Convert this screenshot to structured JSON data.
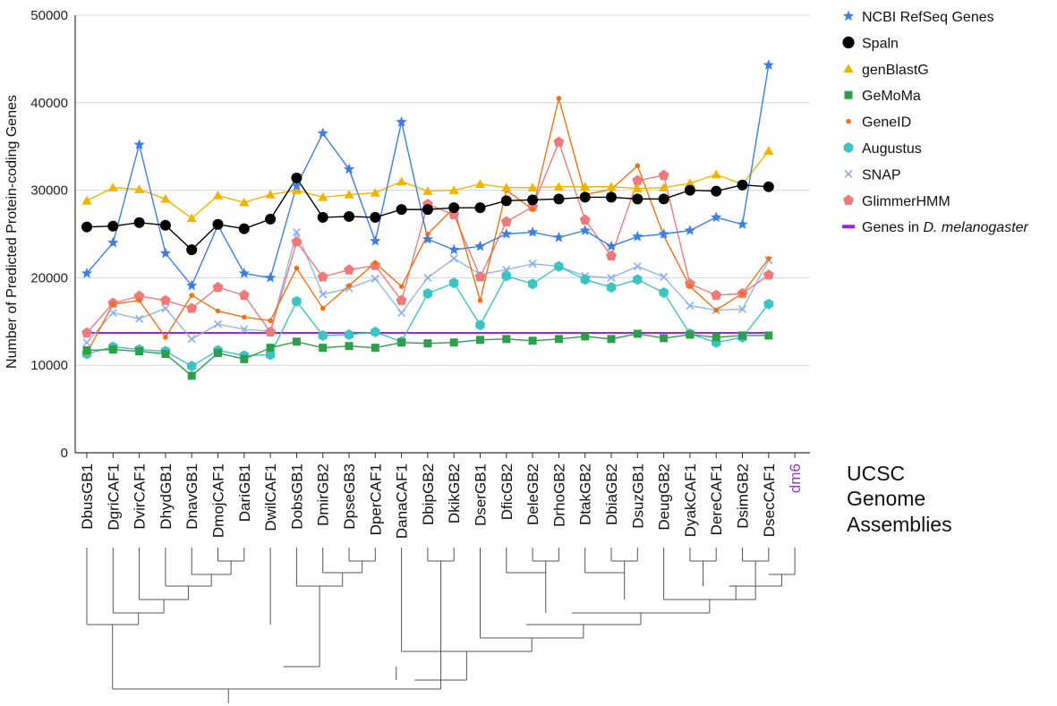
{
  "chart_data": {
    "type": "line",
    "ylabel": "Number of Predicted Protein-coding Genes",
    "ylim": [
      0,
      50000
    ],
    "yticks": [
      0,
      10000,
      20000,
      30000,
      40000,
      50000
    ],
    "grid": true,
    "legend_position": "right",
    "categories": [
      "DbusGB1",
      "DgriCAF1",
      "DvirCAF1",
      "DhydGB1",
      "DnavGB1",
      "DmojCAF1",
      "DariGB1",
      "DwilCAF1",
      "DobsGB1",
      "DmirGB2",
      "DpseGB3",
      "DperCAF1",
      "DanaCAF1",
      "DbipGB2",
      "DkikGB2",
      "DserGB1",
      "DficGB2",
      "DeleGB2",
      "DrhoGB2",
      "DtakGB2",
      "DbiaGB2",
      "DsuzGB1",
      "DeugGB2",
      "DyakCAF1",
      "DereCAF1",
      "DsimGB2",
      "DsecCAF1",
      "dm6"
    ],
    "highlight_category": {
      "label": "dm6",
      "color": "#9b30e0"
    },
    "series": [
      {
        "name": "NCBI RefSeq Genes",
        "color": "#3d7fe0",
        "marker": "star",
        "values": [
          20500,
          24000,
          35200,
          22800,
          19100,
          26000,
          20500,
          20000,
          30500,
          36500,
          32400,
          24200,
          37800,
          24400,
          23200,
          23600,
          25000,
          25200,
          24600,
          25400,
          23600,
          24700,
          25000,
          25400,
          26900,
          26100,
          44300,
          null
        ]
      },
      {
        "name": "Spaln",
        "color": "#000000",
        "marker": "circle",
        "values": [
          25800,
          25900,
          26300,
          26000,
          23200,
          26100,
          25600,
          26700,
          31400,
          26900,
          27000,
          26900,
          27800,
          27800,
          28000,
          28000,
          28800,
          28900,
          29000,
          29200,
          29200,
          29000,
          29000,
          30000,
          29900,
          30600,
          30400,
          null
        ]
      },
      {
        "name": "genBlastG",
        "color": "#f2b400",
        "marker": "triangle",
        "values": [
          28800,
          30300,
          30100,
          29000,
          26800,
          29400,
          28600,
          29500,
          30000,
          29200,
          29500,
          29700,
          31000,
          29900,
          30000,
          30700,
          30300,
          30300,
          30400,
          30400,
          30400,
          30200,
          30300,
          30800,
          31800,
          30700,
          34500,
          null
        ]
      },
      {
        "name": "GeMoMa",
        "color": "#2e9e4a",
        "marker": "square",
        "values": [
          11700,
          11800,
          11600,
          11300,
          8800,
          11400,
          10700,
          12000,
          12700,
          12000,
          12200,
          12000,
          12600,
          12500,
          12600,
          12900,
          13000,
          12800,
          13000,
          13300,
          13000,
          13600,
          13100,
          13500,
          13200,
          13400,
          13400,
          null
        ]
      },
      {
        "name": "GeneID",
        "color": "#f07214",
        "marker": "dot",
        "values": [
          11400,
          17000,
          17400,
          13200,
          18000,
          16200,
          15500,
          15100,
          21100,
          16500,
          19100,
          21700,
          19000,
          25000,
          28000,
          17400,
          30000,
          27800,
          40500,
          29500,
          30100,
          32800,
          24800,
          19000,
          16300,
          18200,
          22200,
          null
        ]
      },
      {
        "name": "Augustus",
        "color": "#3cc4c4",
        "marker": "hexagon",
        "values": [
          11300,
          12100,
          11800,
          11600,
          9900,
          11700,
          11100,
          11200,
          17300,
          13400,
          13500,
          13800,
          12700,
          18200,
          19400,
          14600,
          20200,
          19300,
          21300,
          19800,
          18900,
          19800,
          18300,
          13600,
          12600,
          13200,
          17000,
          null
        ]
      },
      {
        "name": "SNAP",
        "color": "#8aaee8",
        "marker": "x",
        "values": [
          12600,
          16000,
          15300,
          16500,
          13000,
          14700,
          14100,
          13900,
          25200,
          18100,
          18800,
          19900,
          16000,
          20000,
          22200,
          20400,
          20900,
          21600,
          21300,
          20200,
          20000,
          21300,
          20100,
          16800,
          16300,
          16400,
          22000,
          null
        ]
      },
      {
        "name": "GlimmerHMM",
        "color": "#ee7b7b",
        "marker": "pentagon",
        "values": [
          13700,
          17100,
          17900,
          17400,
          16500,
          18900,
          18000,
          13800,
          24100,
          20100,
          20900,
          21400,
          17400,
          28400,
          27200,
          20100,
          26400,
          28100,
          35500,
          26600,
          22500,
          31100,
          31700,
          19300,
          18000,
          18200,
          20300,
          null
        ]
      },
      {
        "name": "Genes in D. melanogaster",
        "name_plain": "Genes in ",
        "name_italic": "D. melanogaster",
        "color": "#a020f0",
        "marker": "hline",
        "values": [
          13700,
          13700,
          13700,
          13700,
          13700,
          13700,
          13700,
          13700,
          13700,
          13700,
          13700,
          13700,
          13700,
          13700,
          13700,
          13700,
          13700,
          13700,
          13700,
          13700,
          13700,
          13700,
          13700,
          13700,
          13700,
          13700,
          13700,
          null
        ]
      }
    ]
  },
  "side_label": [
    "UCSC",
    "Genome",
    "Assemblies"
  ]
}
